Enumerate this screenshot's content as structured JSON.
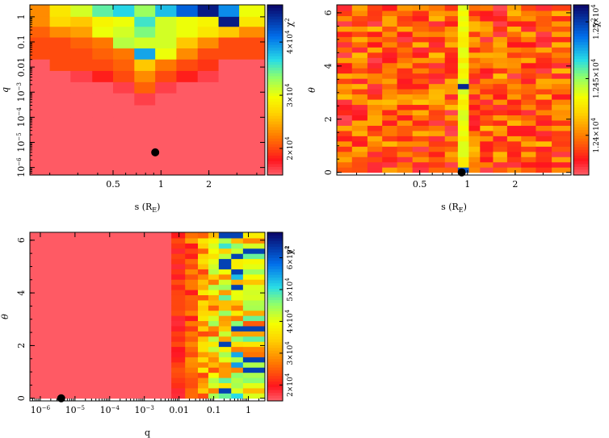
{
  "chart_data": [
    {
      "type": "heatmap",
      "panel": "top-left",
      "xlabel": "s (R",
      "xlabel_sub": "E",
      "xlabel_close": ")",
      "ylabel": "q",
      "x_scale": "log",
      "y_scale": "log",
      "xlim": [
        0.15,
        4.5
      ],
      "ylim": [
        5e-07,
        3
      ],
      "x_ticks": [
        {
          "value": 0.5,
          "label": "0.5"
        },
        {
          "value": 1,
          "label": "1"
        },
        {
          "value": 2,
          "label": "2"
        }
      ],
      "y_ticks": [
        {
          "value": 1,
          "label": "1"
        },
        {
          "value": 0.1,
          "label": "0.1"
        },
        {
          "value": 0.01,
          "label": "0.01"
        },
        {
          "value": 0.001,
          "label": "10",
          "exp": "−3"
        },
        {
          "value": 0.0001,
          "label": "10",
          "exp": "−4"
        },
        {
          "value": 1e-05,
          "label": "10",
          "exp": "−5"
        },
        {
          "value": 1e-06,
          "label": "10",
          "exp": "−6"
        }
      ],
      "x_cells": [
        0.15,
        0.2,
        0.27,
        0.37,
        0.5,
        0.68,
        0.92,
        1.25,
        1.7,
        2.3,
        3.1,
        4.5
      ],
      "y_cells": [
        3,
        1,
        0.4,
        0.15,
        0.055,
        0.02,
        0.007,
        0.0025,
        0.0009,
        0.0003,
        0.0001,
        5e-07
      ],
      "z": [
        [
          2.3,
          2.8,
          3.1,
          3.5,
          3.7,
          3.3,
          3.8,
          4.2,
          4.6,
          4.0,
          3.0
        ],
        [
          2.3,
          2.7,
          2.6,
          2.9,
          3.0,
          3.6,
          3.1,
          3.0,
          2.9,
          4.6,
          2.8
        ],
        [
          2.1,
          2.3,
          2.4,
          3.0,
          3.1,
          3.4,
          3.1,
          3.0,
          2.8,
          2.6,
          2.3
        ],
        [
          2.0,
          2.0,
          2.1,
          2.2,
          3.2,
          3.1,
          3.1,
          2.6,
          2.3,
          2.0,
          2.0
        ],
        [
          2.0,
          2.0,
          2.0,
          2.1,
          2.2,
          3.9,
          3.0,
          2.3,
          2.0,
          2.0,
          2.0
        ],
        [
          1.5,
          2.0,
          2.0,
          2.0,
          2.1,
          2.6,
          2.2,
          2.0,
          1.9,
          1.5,
          1.5
        ],
        [
          1.5,
          1.5,
          1.6,
          1.8,
          2.0,
          2.3,
          2.0,
          1.8,
          1.6,
          1.5,
          1.5
        ],
        [
          1.5,
          1.5,
          1.5,
          1.5,
          1.6,
          2.1,
          1.6,
          1.5,
          1.5,
          1.5,
          1.5
        ],
        [
          1.5,
          1.5,
          1.5,
          1.5,
          1.5,
          1.6,
          1.5,
          1.5,
          1.5,
          1.5,
          1.5
        ],
        [
          1.5,
          1.5,
          1.5,
          1.5,
          1.5,
          1.5,
          1.5,
          1.5,
          1.5,
          1.5,
          1.5
        ],
        [
          1.5,
          1.5,
          1.5,
          1.5,
          1.5,
          1.5,
          1.5,
          1.5,
          1.5,
          1.5,
          1.5
        ]
      ],
      "best_fit": {
        "x": 0.92,
        "y": 4e-06
      },
      "colorbar": {
        "label": "χ",
        "label_exp": "2",
        "zlim": [
          1.5,
          4.7
        ],
        "ticks": [
          {
            "value": 2,
            "label": "2×10",
            "exp": "4"
          },
          {
            "value": 3,
            "label": "3×10",
            "exp": "4"
          },
          {
            "value": 4,
            "label": "4×10",
            "exp": "4"
          }
        ]
      }
    },
    {
      "type": "heatmap",
      "panel": "top-right",
      "xlabel": "s (R",
      "xlabel_sub": "E",
      "xlabel_close": ")",
      "ylabel": "θ",
      "x_scale": "log",
      "y_scale": "linear",
      "xlim": [
        0.15,
        4.5
      ],
      "ylim": [
        -0.1,
        6.3
      ],
      "x_ticks": [
        {
          "value": 0.5,
          "label": "0.5"
        },
        {
          "value": 1,
          "label": "1"
        },
        {
          "value": 2,
          "label": "2"
        }
      ],
      "y_ticks": [
        {
          "value": 0,
          "label": "0"
        },
        {
          "value": 2,
          "label": "2"
        },
        {
          "value": 4,
          "label": "4"
        },
        {
          "value": 6,
          "label": "6"
        }
      ],
      "n_cols": 16,
      "n_rows": 32,
      "x_edges": [
        0.15,
        0.187,
        0.234,
        0.29,
        0.36,
        0.45,
        0.57,
        0.72,
        0.87,
        1.02,
        1.2,
        1.45,
        1.78,
        2.18,
        2.7,
        3.4,
        4.5
      ],
      "ridge_col": 8,
      "best_fit": {
        "x": 0.92,
        "y": 0.0
      },
      "colorbar": {
        "label": "χ",
        "label_exp": "2",
        "zlim": [
          1.2365,
          1.2515
        ],
        "ticks": [
          {
            "value": 1.24,
            "label": "1.24×10",
            "exp": "4"
          },
          {
            "value": 1.245,
            "label": "1.245×10",
            "exp": "4"
          },
          {
            "value": 1.25,
            "label": "1.25×10",
            "exp": "4"
          }
        ]
      }
    },
    {
      "type": "heatmap",
      "panel": "bottom-left",
      "xlabel": "q",
      "ylabel": "θ",
      "x_scale": "log",
      "y_scale": "linear",
      "xlim": [
        5e-07,
        3
      ],
      "ylim": [
        -0.1,
        6.3
      ],
      "x_ticks": [
        {
          "value": 1e-06,
          "label": "10",
          "exp": "−6"
        },
        {
          "value": 1e-05,
          "label": "10",
          "exp": "−5"
        },
        {
          "value": 0.0001,
          "label": "10",
          "exp": "−4"
        },
        {
          "value": 0.001,
          "label": "10",
          "exp": "−3"
        },
        {
          "value": 0.01,
          "label": "0.01"
        },
        {
          "value": 0.1,
          "label": "0.1"
        },
        {
          "value": 1,
          "label": "1"
        }
      ],
      "y_ticks": [
        {
          "value": 0,
          "label": "0"
        },
        {
          "value": 2,
          "label": "2"
        },
        {
          "value": 4,
          "label": "4"
        },
        {
          "value": 6,
          "label": "6"
        }
      ],
      "q_edges": [
        5e-07,
        0.006,
        0.015,
        0.035,
        0.07,
        0.14,
        0.32,
        0.7,
        3
      ],
      "n_rows": 32,
      "best_fit": {
        "x": 4e-06,
        "y": 0.0
      },
      "colorbar": {
        "label": "χ",
        "label_exp": "2",
        "zlim": [
          1.5,
          6.8
        ],
        "ticks": [
          {
            "value": 2,
            "label": "2×10",
            "exp": "4"
          },
          {
            "value": 3,
            "label": "3×10",
            "exp": "4"
          },
          {
            "value": 4,
            "label": "4×10",
            "exp": "4"
          },
          {
            "value": 5,
            "label": "5×10",
            "exp": "4"
          },
          {
            "value": 6,
            "label": "6×10",
            "exp": "4"
          }
        ]
      }
    }
  ]
}
